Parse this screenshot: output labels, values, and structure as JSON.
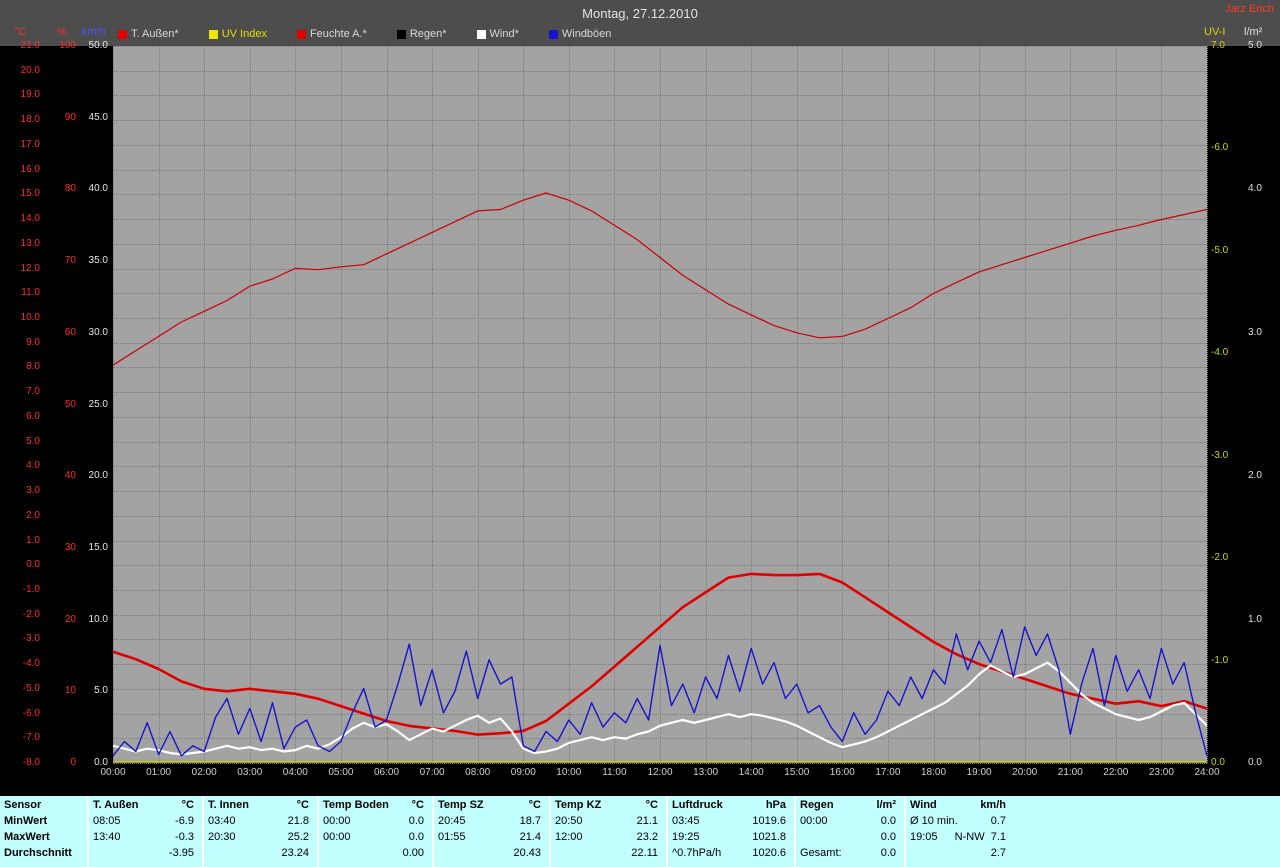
{
  "window": {
    "title": "Montag, 27.12.2010",
    "user": "Jarz Erich"
  },
  "axis_headers": {
    "temp_unit": "°C",
    "humidity_unit": "%",
    "wind_unit": "km/h",
    "uv_unit": "UV-I",
    "rain_unit": "l/m²"
  },
  "legend": [
    {
      "id": "temp",
      "label": "T. Außen*",
      "color": "#e00000",
      "text_color": "#d8d8d8"
    },
    {
      "id": "uv",
      "label": "UV Index",
      "color": "#e8e800",
      "text_color": "#e0e000"
    },
    {
      "id": "humidity",
      "label": "Feuchte A.*",
      "color": "#e00000",
      "text_color": "#d8d8d8"
    },
    {
      "id": "rain",
      "label": "Regen*",
      "color": "#000000",
      "text_color": "#d8d8d8"
    },
    {
      "id": "wind",
      "label": "Wind*",
      "color": "#ffffff",
      "text_color": "#d8d8d8"
    },
    {
      "id": "gusts",
      "label": "Windböen",
      "color": "#1515cd",
      "text_color": "#d8d8d8"
    }
  ],
  "chart_data": {
    "type": "line",
    "title": "Montag, 27.12.2010",
    "grid": true,
    "x_axis": {
      "unit": "time",
      "range_hours": [
        0,
        24
      ],
      "tick_labels": [
        "00:00",
        "01:00",
        "02:00",
        "03:00",
        "04:00",
        "05:00",
        "06:00",
        "07:00",
        "08:00",
        "09:00",
        "10:00",
        "11:00",
        "12:00",
        "13:00",
        "14:00",
        "15:00",
        "16:00",
        "17:00",
        "18:00",
        "19:00",
        "20:00",
        "21:00",
        "22:00",
        "23:00",
        "24:00"
      ]
    },
    "y_axes": {
      "temp_c": {
        "min": -8,
        "max": 21,
        "color": "#ff2a2a",
        "labels": [
          "21.0",
          "20.0",
          "19.0",
          "18.0",
          "17.0",
          "16.0",
          "15.0",
          "14.0",
          "13.0",
          "12.0",
          "11.0",
          "10.0",
          "9.0",
          "8.0",
          "7.0",
          "6.0",
          "5.0",
          "4.0",
          "3.0",
          "2.0",
          "1.0",
          "0.0",
          "-1.0",
          "-2.0",
          "-3.0",
          "-4.0",
          "-5.0",
          "-6.0",
          "-7.0",
          "-8.0"
        ]
      },
      "humidity_pct": {
        "min": 0,
        "max": 100,
        "color": "#ff2a2a",
        "labels": [
          "100",
          "90",
          "80",
          "70",
          "60",
          "50",
          "40",
          "30",
          "20",
          "10",
          "0"
        ]
      },
      "wind_kmh": {
        "min": 0,
        "max": 50,
        "color": "#e6e6e6",
        "labels": [
          "50.0",
          "45.0",
          "40.0",
          "35.0",
          "30.0",
          "25.0",
          "20.0",
          "15.0",
          "10.0",
          "5.0",
          "0.0"
        ]
      },
      "uv_index": {
        "min": 0,
        "max": 7,
        "color": "#d4d400",
        "labels": [
          "7.0",
          "-6.0",
          "-5.0",
          "-4.0",
          "-3.0",
          "-2.0",
          "-1.0",
          "0.0"
        ]
      },
      "rain_lm2": {
        "min": 0,
        "max": 5,
        "color": "#e0e0e0",
        "labels": [
          "5.0",
          "4.0",
          "3.0",
          "2.0",
          "1.0",
          "0.0"
        ]
      }
    },
    "series": [
      {
        "id": "rain",
        "name": "Regen",
        "axis": "rain_lm2",
        "color": "#000000",
        "width": 1.2,
        "step_hours": 24,
        "values": [
          0.0,
          0.0
        ]
      },
      {
        "id": "uv",
        "name": "UV Index",
        "axis": "uv_index",
        "color": "#d8d800",
        "width": 1.5,
        "step_hours": 24,
        "values": [
          0.01,
          0.01
        ]
      },
      {
        "id": "humidity",
        "name": "Feuchte A.",
        "axis": "humidity_pct",
        "color": "#cc0000",
        "width": 1.2,
        "step_hours": 0.5,
        "values": [
          55.5,
          57.5,
          59.5,
          61.5,
          63,
          64.5,
          66.5,
          67.5,
          69,
          68.8,
          69.2,
          69.5,
          71,
          72.5,
          74,
          75.5,
          77,
          77.2,
          78.5,
          79.5,
          78.5,
          77,
          75,
          73,
          70.5,
          68,
          66,
          64,
          62.5,
          61,
          60,
          59.3,
          59.5,
          60.5,
          62,
          63.5,
          65.5,
          67,
          68.5,
          69.5,
          70.5,
          71.5,
          72.5,
          73.5,
          74.3,
          75,
          75.8,
          76.5,
          77.2
        ]
      },
      {
        "id": "temp",
        "name": "T. Außen",
        "axis": "temp_c",
        "color": "#e00000",
        "width": 2.6,
        "step_hours": 0.5,
        "values": [
          -3.5,
          -3.8,
          -4.2,
          -4.7,
          -5.0,
          -5.1,
          -5.0,
          -5.1,
          -5.2,
          -5.4,
          -5.7,
          -6.0,
          -6.3,
          -6.5,
          -6.6,
          -6.7,
          -6.85,
          -6.8,
          -6.7,
          -6.3,
          -5.6,
          -4.9,
          -4.1,
          -3.3,
          -2.5,
          -1.7,
          -1.1,
          -0.5,
          -0.35,
          -0.4,
          -0.4,
          -0.35,
          -0.7,
          -1.3,
          -1.9,
          -2.5,
          -3.1,
          -3.6,
          -4.0,
          -4.3,
          -4.6,
          -4.9,
          -5.2,
          -5.4,
          -5.6,
          -5.5,
          -5.7,
          -5.5,
          -5.8
        ]
      },
      {
        "id": "wind",
        "name": "Wind",
        "axis": "wind_kmh",
        "color": "#ffffff",
        "width": 2.2,
        "step_hours": 0.25,
        "values": [
          1.2,
          1.0,
          0.8,
          1.0,
          0.9,
          0.7,
          0.6,
          0.7,
          0.8,
          1.0,
          1.2,
          1.0,
          1.1,
          0.9,
          1.0,
          0.8,
          0.9,
          1.2,
          1.0,
          1.3,
          1.8,
          2.4,
          2.8,
          2.5,
          2.7,
          2.2,
          1.6,
          2.0,
          2.4,
          2.2,
          2.6,
          3.0,
          3.3,
          2.8,
          3.1,
          2.2,
          1.0,
          0.7,
          0.8,
          1.0,
          1.4,
          1.6,
          1.8,
          1.6,
          1.8,
          1.7,
          2.0,
          2.2,
          2.6,
          2.8,
          3.0,
          2.8,
          3.0,
          3.2,
          3.4,
          3.2,
          3.4,
          3.3,
          3.1,
          2.9,
          2.6,
          2.2,
          1.8,
          1.4,
          1.1,
          1.3,
          1.5,
          1.8,
          2.2,
          2.6,
          3.0,
          3.4,
          3.8,
          4.2,
          4.8,
          5.4,
          6.2,
          6.8,
          6.4,
          6.0,
          6.2,
          6.6,
          7.0,
          6.4,
          5.6,
          4.8,
          4.2,
          3.8,
          3.4,
          3.2,
          3.0,
          3.2,
          3.6,
          4.0,
          4.2,
          3.4,
          2.6
        ]
      },
      {
        "id": "gusts",
        "name": "Windböen",
        "axis": "wind_kmh",
        "color": "#1515cd",
        "width": 1.4,
        "step_hours": 0.25,
        "values": [
          0.5,
          1.5,
          0.8,
          2.8,
          0.6,
          2.2,
          0.5,
          1.2,
          0.8,
          3.2,
          4.5,
          2.0,
          3.8,
          1.5,
          4.2,
          1.0,
          2.5,
          3.0,
          1.2,
          0.8,
          1.5,
          3.5,
          5.2,
          2.5,
          3.0,
          5.5,
          8.3,
          4.0,
          6.5,
          3.5,
          5.0,
          7.8,
          4.5,
          7.2,
          5.5,
          6.0,
          1.2,
          0.8,
          2.2,
          1.5,
          3.0,
          2.0,
          4.2,
          2.5,
          3.5,
          2.8,
          4.5,
          3.0,
          8.2,
          4.0,
          5.5,
          3.5,
          6.0,
          4.5,
          7.5,
          5.0,
          8.0,
          5.5,
          7.0,
          4.5,
          5.5,
          3.5,
          4.0,
          2.5,
          1.5,
          3.5,
          2.0,
          3.0,
          5.0,
          4.0,
          6.0,
          4.5,
          6.5,
          5.5,
          9.0,
          6.5,
          8.5,
          7.0,
          9.3,
          6.0,
          9.5,
          7.5,
          9.0,
          6.5,
          2.0,
          5.5,
          8.0,
          4.0,
          7.5,
          5.0,
          6.5,
          4.5,
          8.0,
          5.5,
          7.0,
          3.5,
          0.5
        ]
      }
    ]
  },
  "table": {
    "row_headers": [
      "Sensor",
      "MinWert",
      "MaxWert",
      "Durchschnitt"
    ],
    "columns": [
      {
        "name": "T. Außen",
        "unit": "°C",
        "min_time": "08:05",
        "min": "-6.9",
        "max_time": "13:40",
        "max": "-0.3",
        "avg_label": "",
        "avg": "-3.95"
      },
      {
        "name": "T. Innen",
        "unit": "°C",
        "min_time": "03:40",
        "min": "21.8",
        "max_time": "20:30",
        "max": "25.2",
        "avg_label": "",
        "avg": "23.24"
      },
      {
        "name": "Temp Boden",
        "unit": "°C",
        "min_time": "00:00",
        "min": "0.0",
        "max_time": "00:00",
        "max": "0.0",
        "avg_label": "",
        "avg": "0.00"
      },
      {
        "name": "Temp SZ",
        "unit": "°C",
        "min_time": "20:45",
        "min": "18.7",
        "max_time": "01:55",
        "max": "21.4",
        "avg_label": "",
        "avg": "20.43"
      },
      {
        "name": "Temp KZ",
        "unit": "°C",
        "min_time": "20:50",
        "min": "21.1",
        "max_time": "12:00",
        "max": "23.2",
        "avg_label": "",
        "avg": "22.11"
      },
      {
        "name": "Luftdruck",
        "unit": "hPa",
        "min_time": "03:45",
        "min": "1019.6",
        "max_time": "19:25",
        "max": "1021.8",
        "avg_label": "^0.7hPa/h",
        "avg": "1020.6"
      },
      {
        "name": "Regen",
        "unit": "l/m²",
        "min_time": "00:00",
        "min": "0.0",
        "max_time": "",
        "max": "0.0",
        "avg_label": "Gesamt:",
        "avg": "0.0"
      },
      {
        "name": "Wind",
        "unit": "km/h",
        "min_time": "Ø 10 min.",
        "min": "0.7",
        "max_time": "19:05",
        "max_extra": "N-NW",
        "max": "7.1",
        "avg_label": "",
        "avg": "2.7"
      }
    ]
  }
}
